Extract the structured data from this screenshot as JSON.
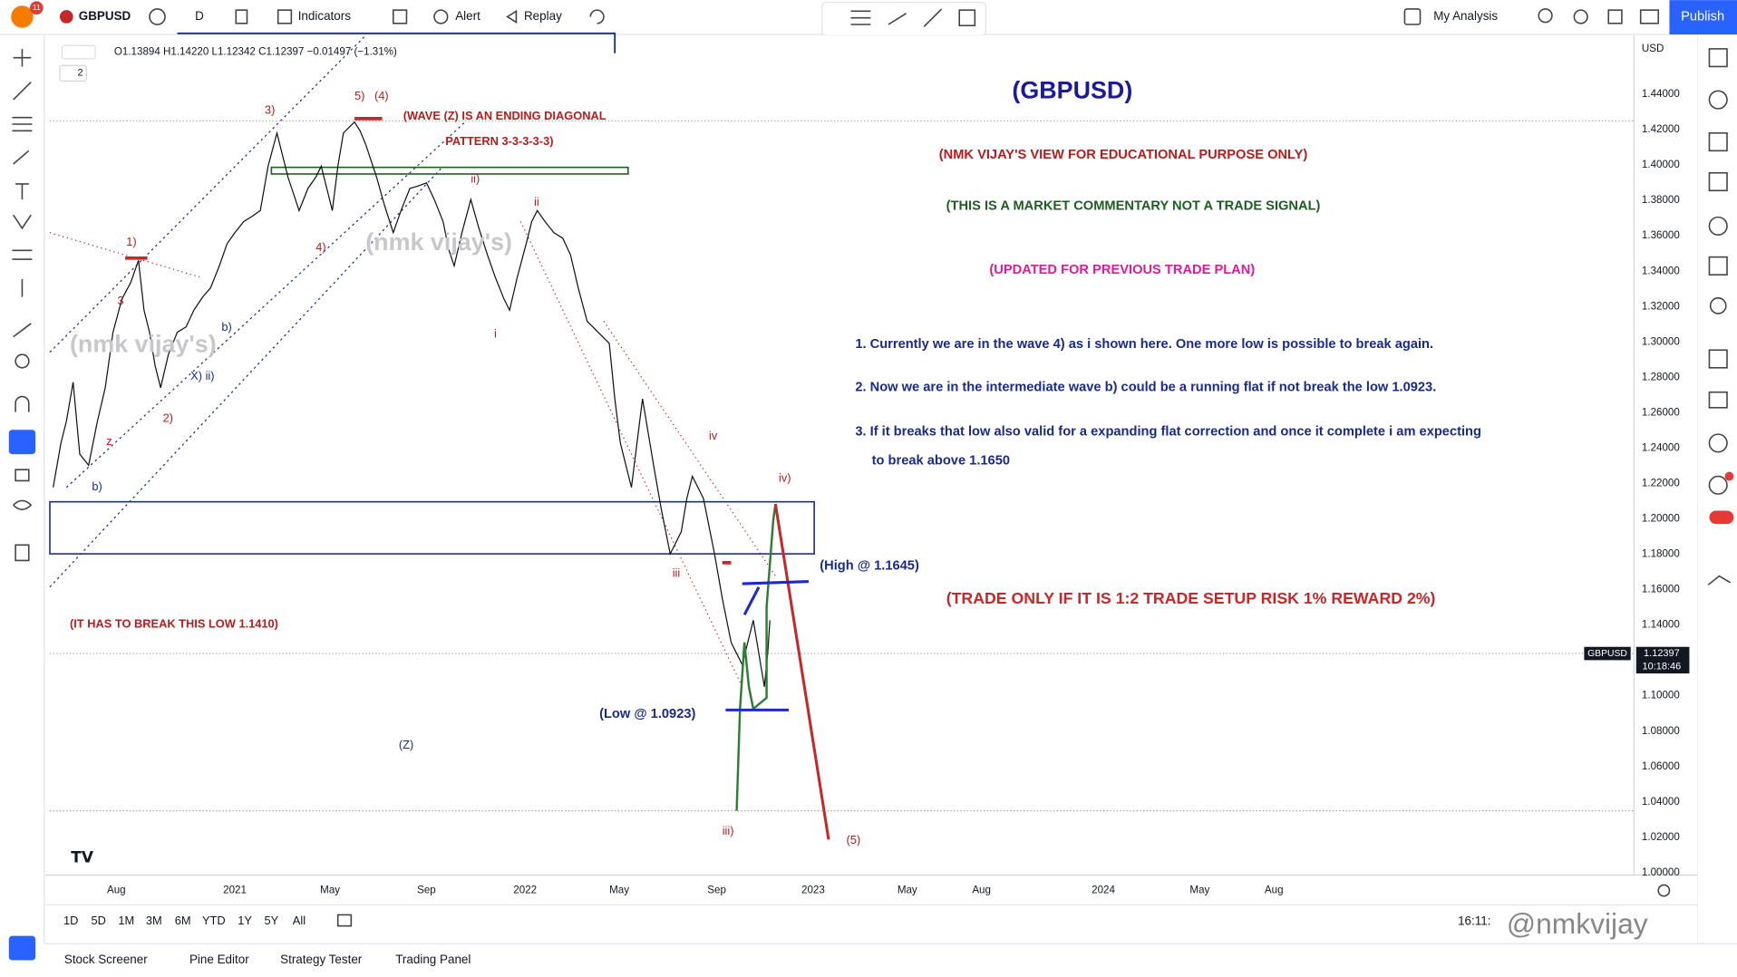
{
  "toolbar": {
    "badge": "11",
    "symbol": "GBPUSD",
    "interval": "D",
    "indicators": "Indicators",
    "alert": "Alert",
    "replay": "Replay",
    "layout": "My Analysis",
    "publish": "Publish"
  },
  "legend": {
    "ohlc": "O1.13894 H1.14220 L1.12342 C1.12397 −0.01497 (−1.31%)",
    "count": "2"
  },
  "price_axis": {
    "currency": "USD",
    "labels": [
      "1.44000",
      "1.42000",
      "1.40000",
      "1.38000",
      "1.36000",
      "1.34000",
      "1.32000",
      "1.30000",
      "1.28000",
      "1.26000",
      "1.24000",
      "1.22000",
      "1.20000",
      "1.18000",
      "1.16000",
      "1.14000",
      "1.12000",
      "1.10000",
      "1.08000",
      "1.06000",
      "1.04000",
      "1.02000",
      "1.00000"
    ],
    "tag": "GBPUSD",
    "last": "1.12397",
    "countdown": "10:18:46"
  },
  "time_axis": [
    "Aug",
    "2021",
    "May",
    "Sep",
    "2022",
    "May",
    "Sep",
    "2023",
    "May",
    "Aug",
    "2024",
    "May",
    "Aug"
  ],
  "ranges": [
    "1D",
    "5D",
    "1M",
    "3M",
    "6M",
    "YTD",
    "1Y",
    "5Y",
    "All"
  ],
  "clock": "16:11:",
  "bottom_tabs": [
    "Stock Screener",
    "Pine Editor",
    "Strategy Tester",
    "Trading Panel"
  ],
  "annotations": {
    "title": "(GBPUSD)",
    "disclaimer": "(NMK VIJAY'S VIEW FOR EDUCATIONAL PURPOSE ONLY)",
    "commentary": "(THIS IS A MARKET COMMENTARY NOT A TRADE SIGNAL)",
    "updated": "(UPDATED FOR PREVIOUS TRADE PLAN)",
    "notes": [
      "1. Currently we are in the wave 4) as i shown here.  One more low is possible to break again.",
      "2. Now we are in the intermediate wave b) could be a running flat if not break the low 1.0923.",
      "3. If it breaks that low also valid for a expanding flat correction and once it complete i am expecting",
      "to break above 1.1650"
    ],
    "high": "(High @ 1.1645)",
    "low": "(Low @ 1.0923)",
    "trade_rule": "(TRADE ONLY IF IT IS 1:2 TRADE SETUP RISK 1% REWARD 2%)",
    "break_low": "(IT HAS TO BREAK THIS LOW 1.1410)",
    "diagonal_1": "(WAVE (Z) IS AN ENDING DIAGONAL",
    "diagonal_2": "PATTERN 3-3-3-3-3)",
    "watermark": "(nmk vijay's)"
  },
  "waves": [
    "(4)",
    "5)",
    "3)",
    "1)",
    "2)",
    "b)",
    "(Z)",
    "iii)",
    "(5)",
    "iv)",
    "iv",
    "ii)",
    "ii",
    "i",
    "iii",
    "4)",
    "X) ii)",
    "3",
    "z",
    "b)"
  ]
}
